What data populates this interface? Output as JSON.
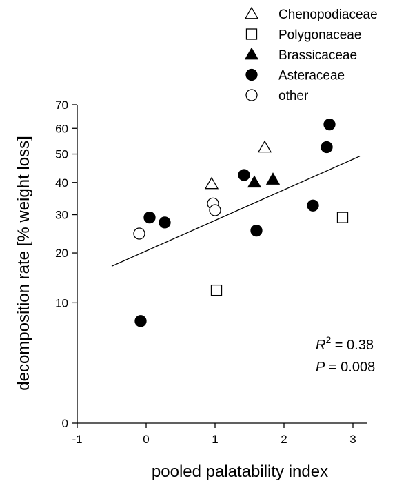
{
  "chart_data": {
    "type": "scatter",
    "title": "",
    "xlabel": "pooled palatability index",
    "ylabel": "decomposition rate [% weight loss]",
    "xlim": [
      -1,
      3.2
    ],
    "ylim": [
      0,
      70
    ],
    "y_scale": "sqrt",
    "x_ticks": [
      -1,
      0,
      1,
      2,
      3
    ],
    "x_tick_labels": [
      "-1",
      "0",
      "1",
      "2",
      "3"
    ],
    "y_ticks": [
      0,
      10,
      20,
      30,
      40,
      50,
      60,
      70
    ],
    "y_tick_labels": [
      "0",
      "10",
      "20",
      "30",
      "40",
      "50",
      "60",
      "70"
    ],
    "grid": false,
    "legend_position": "top-right",
    "series": [
      {
        "name": "Chenopodiaceae",
        "marker": "triangle-open",
        "points": [
          {
            "x": 0.95,
            "y": 39.5
          },
          {
            "x": 1.72,
            "y": 52.5
          }
        ]
      },
      {
        "name": "Polygonaceae",
        "marker": "square-open",
        "points": [
          {
            "x": 1.02,
            "y": 12.2
          },
          {
            "x": 2.85,
            "y": 29.2
          }
        ]
      },
      {
        "name": "Brassicaceae",
        "marker": "triangle-filled",
        "points": [
          {
            "x": 1.57,
            "y": 40.0
          },
          {
            "x": 1.84,
            "y": 41.0
          }
        ]
      },
      {
        "name": "Asteraceae",
        "marker": "circle-filled",
        "points": [
          {
            "x": -0.08,
            "y": 7.2
          },
          {
            "x": 0.05,
            "y": 29.2
          },
          {
            "x": 0.27,
            "y": 27.8
          },
          {
            "x": 1.42,
            "y": 42.5
          },
          {
            "x": 1.6,
            "y": 25.6
          },
          {
            "x": 2.42,
            "y": 32.7
          },
          {
            "x": 2.62,
            "y": 52.6
          },
          {
            "x": 2.66,
            "y": 61.6
          }
        ]
      },
      {
        "name": "other",
        "marker": "circle-open",
        "points": [
          {
            "x": -0.1,
            "y": 24.8
          },
          {
            "x": 0.97,
            "y": 33.3
          },
          {
            "x": 1.0,
            "y": 31.3
          }
        ]
      }
    ],
    "regression_line": {
      "x": [
        -0.5,
        3.1
      ],
      "y": [
        17.0,
        49.2
      ]
    },
    "annotations": {
      "r2_label": "R",
      "r2_sup": "2",
      "r2_value": " = 0.38",
      "p_label": "P",
      "p_value": " = 0.008"
    }
  }
}
